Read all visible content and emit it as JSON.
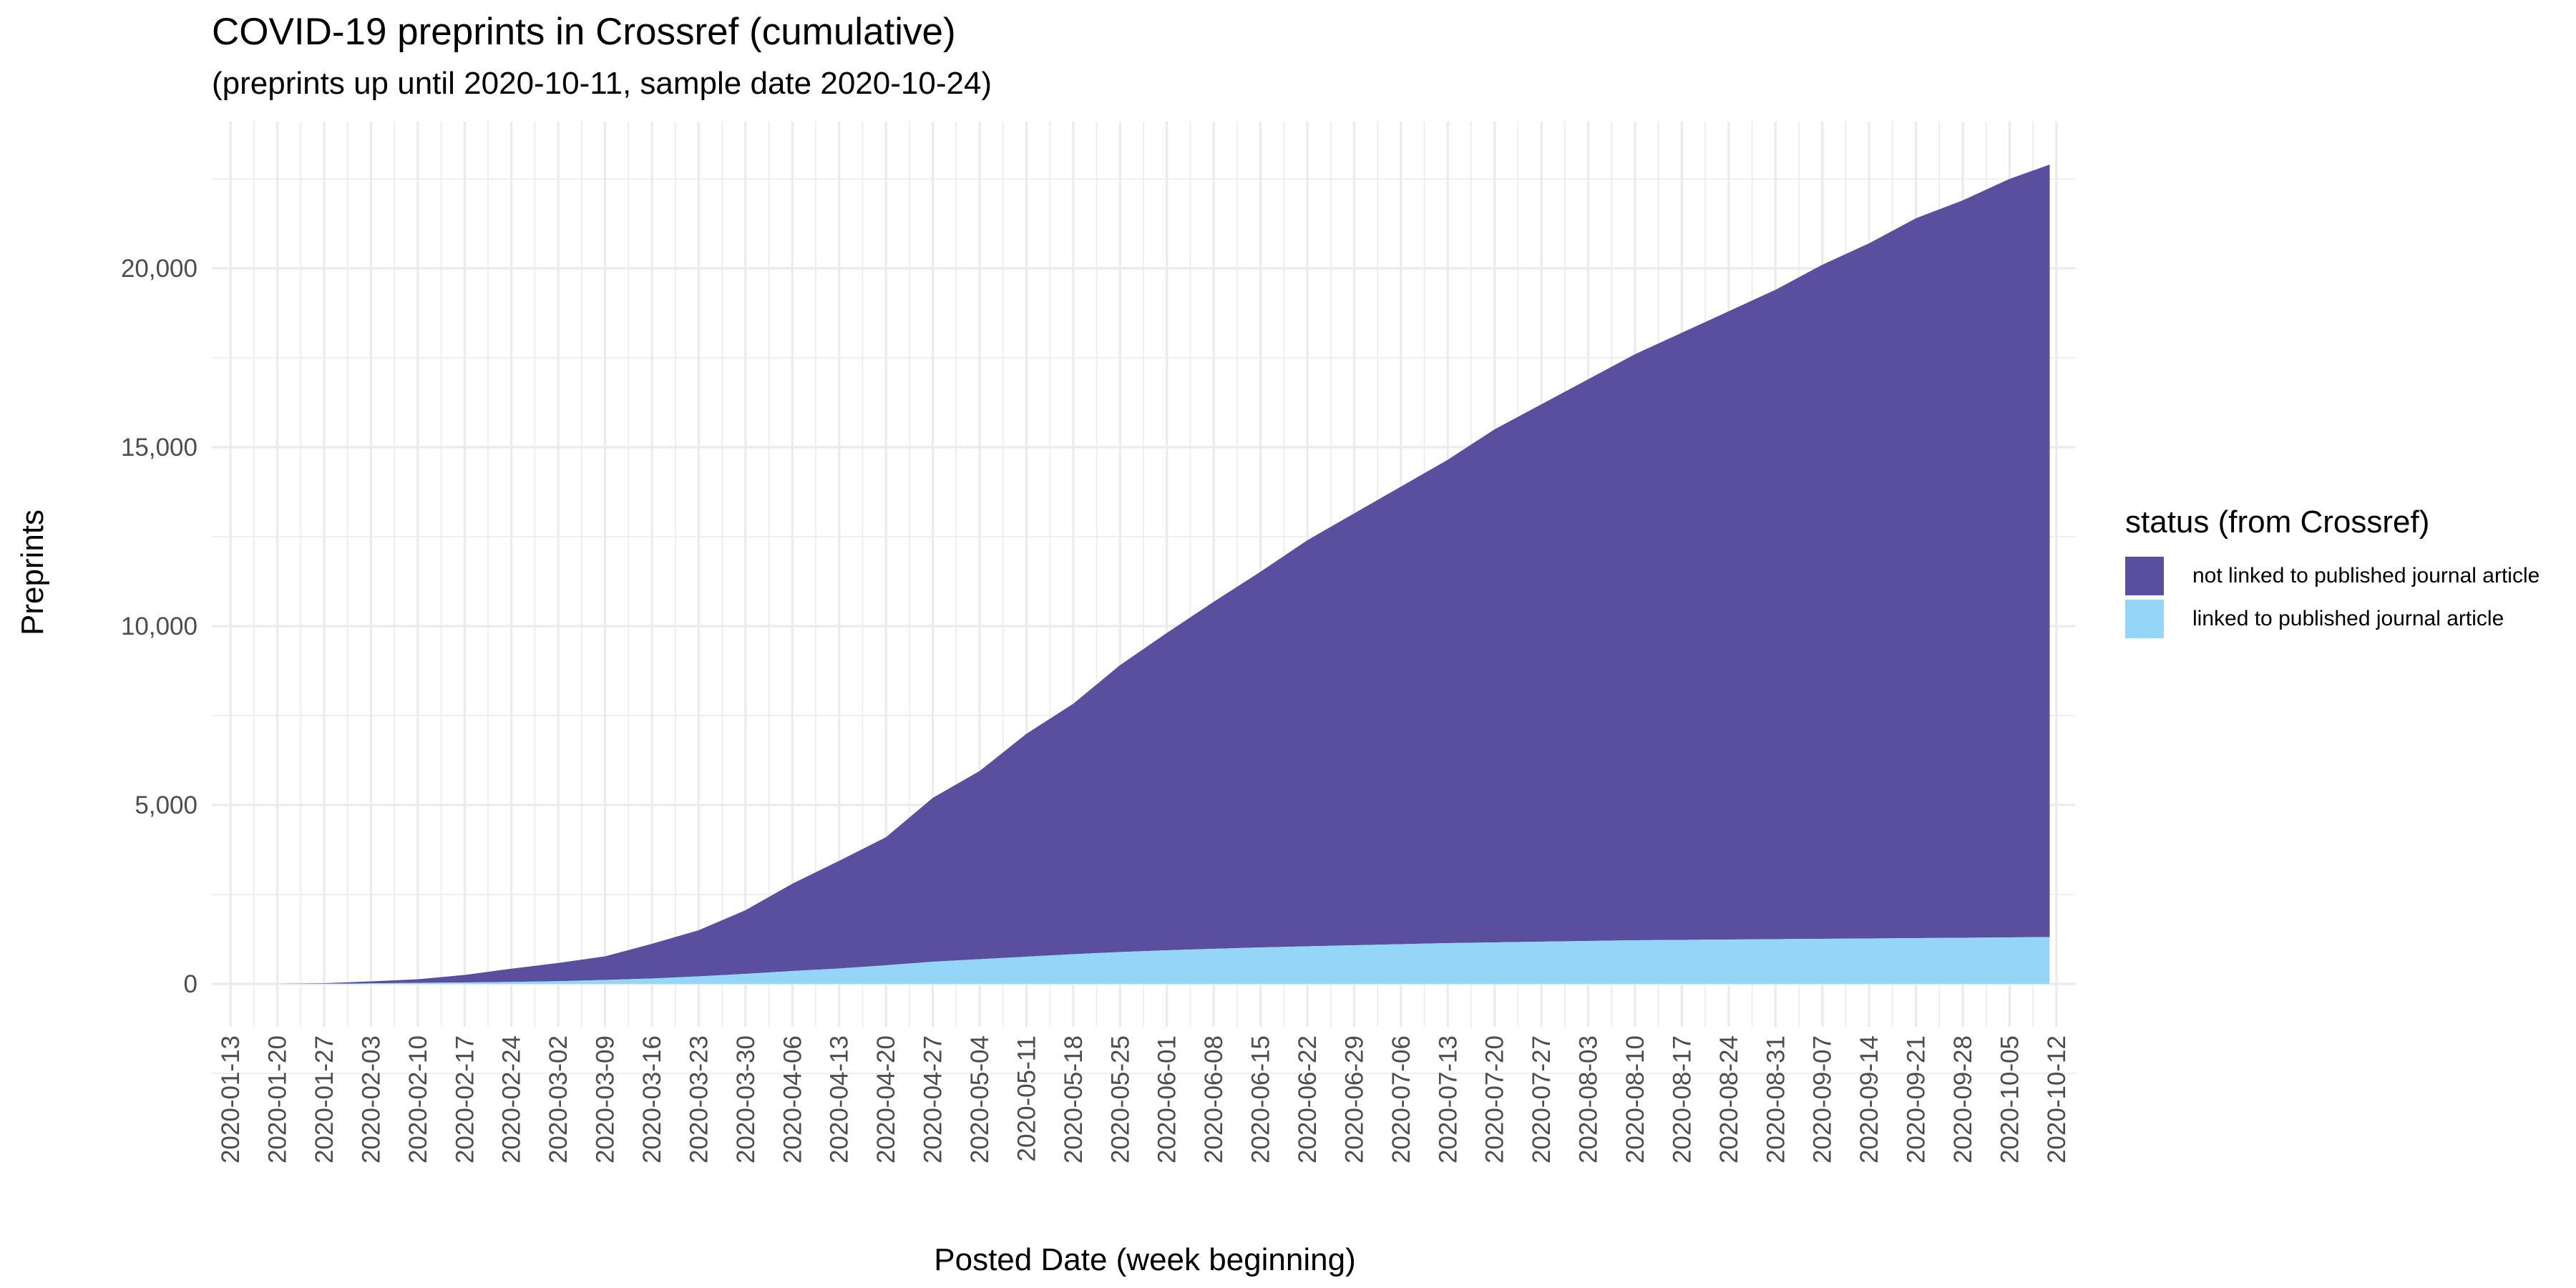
{
  "chart_data": {
    "type": "area",
    "stacked": true,
    "title": "COVID-19 preprints in Crossref (cumulative)",
    "subtitle": "(preprints up until 2020-10-11, sample date 2020-10-24)",
    "xlabel": "Posted Date (week beginning)",
    "ylabel": "Preprints",
    "ylim": [
      -1200,
      24100
    ],
    "yticks": [
      0,
      5000,
      10000,
      15000,
      20000
    ],
    "ytick_labels": [
      "0",
      "5,000",
      "10,000",
      "15,000",
      "20,000"
    ],
    "xticks": [
      "2020-01-13",
      "2020-01-20",
      "2020-01-27",
      "2020-02-03",
      "2020-02-10",
      "2020-02-17",
      "2020-02-24",
      "2020-03-02",
      "2020-03-09",
      "2020-03-16",
      "2020-03-23",
      "2020-03-30",
      "2020-04-06",
      "2020-04-13",
      "2020-04-20",
      "2020-04-27",
      "2020-05-04",
      "2020-05-11",
      "2020-05-18",
      "2020-05-25",
      "2020-06-01",
      "2020-06-08",
      "2020-06-15",
      "2020-06-22",
      "2020-06-29",
      "2020-07-06",
      "2020-07-13",
      "2020-07-20",
      "2020-07-27",
      "2020-08-03",
      "2020-08-10",
      "2020-08-17",
      "2020-08-24",
      "2020-08-31",
      "2020-09-07",
      "2020-09-14",
      "2020-09-21",
      "2020-09-28",
      "2020-10-05",
      "2020-10-12"
    ],
    "grid": true,
    "legend_position": "right",
    "legend_title": "status (from Crossref)",
    "x": [
      "2020-01-13",
      "2020-01-20",
      "2020-01-27",
      "2020-02-03",
      "2020-02-10",
      "2020-02-17",
      "2020-02-24",
      "2020-03-02",
      "2020-03-09",
      "2020-03-16",
      "2020-03-23",
      "2020-03-30",
      "2020-04-06",
      "2020-04-13",
      "2020-04-20",
      "2020-04-27",
      "2020-05-04",
      "2020-05-11",
      "2020-05-18",
      "2020-05-25",
      "2020-06-01",
      "2020-06-08",
      "2020-06-15",
      "2020-06-22",
      "2020-06-29",
      "2020-07-06",
      "2020-07-13",
      "2020-07-20",
      "2020-07-27",
      "2020-08-03",
      "2020-08-10",
      "2020-08-17",
      "2020-08-24",
      "2020-08-31",
      "2020-09-07",
      "2020-09-14",
      "2020-09-21",
      "2020-09-28",
      "2020-10-05",
      "2020-10-11"
    ],
    "series": [
      {
        "name": "linked to published journal article",
        "color": "#95d6f8",
        "values": [
          0,
          0,
          5,
          15,
          30,
          40,
          55,
          75,
          110,
          150,
          210,
          280,
          360,
          430,
          520,
          620,
          690,
          760,
          830,
          890,
          940,
          980,
          1020,
          1050,
          1080,
          1110,
          1140,
          1160,
          1180,
          1200,
          1220,
          1230,
          1240,
          1250,
          1260,
          1270,
          1280,
          1290,
          1300,
          1310
        ]
      },
      {
        "name": "not linked to published journal article",
        "color": "#5a4f9f",
        "values": [
          0,
          0,
          15,
          55,
          100,
          210,
          370,
          510,
          660,
          970,
          1290,
          1780,
          2440,
          3010,
          3580,
          4580,
          5260,
          6230,
          7000,
          8020,
          8870,
          9700,
          10500,
          11350,
          12070,
          12790,
          13510,
          14340,
          15020,
          15700,
          16380,
          16970,
          17560,
          18150,
          18840,
          19430,
          20120,
          20610,
          21200,
          21590
        ]
      }
    ]
  }
}
